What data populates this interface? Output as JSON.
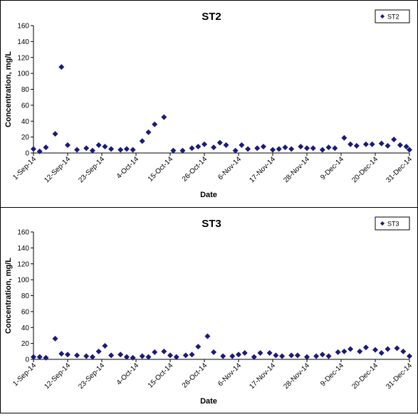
{
  "chart_data": [
    {
      "type": "scatter",
      "title": "ST2",
      "xlabel": "Date",
      "ylabel": "Concentration, mg/L",
      "ylim": [
        0,
        160
      ],
      "yticks": [
        0,
        20,
        40,
        60,
        80,
        100,
        120,
        140,
        160
      ],
      "xlim": [
        "2014-09-01",
        "2014-12-31"
      ],
      "xtick_labels": [
        "1-Sep-14",
        "12-Sep-14",
        "23-Sep-14",
        "4-Oct-14",
        "15-Oct-14",
        "26-Oct-14",
        "6-Nov-14",
        "17-Nov-14",
        "28-Nov-14",
        "9-Dec-14",
        "20-Dec-14",
        "31-Dec-14"
      ],
      "grid": false,
      "legend_position": "top-right",
      "marker_color": "#1a1a7a",
      "series": [
        {
          "name": "ST2",
          "points": [
            [
              "2014-09-01",
              5
            ],
            [
              "2014-09-03",
              2
            ],
            [
              "2014-09-05",
              7
            ],
            [
              "2014-09-08",
              24
            ],
            [
              "2014-09-10",
              108
            ],
            [
              "2014-09-12",
              10
            ],
            [
              "2014-09-15",
              4
            ],
            [
              "2014-09-18",
              6
            ],
            [
              "2014-09-20",
              3
            ],
            [
              "2014-09-22",
              10
            ],
            [
              "2014-09-24",
              8
            ],
            [
              "2014-09-26",
              5
            ],
            [
              "2014-09-29",
              4
            ],
            [
              "2014-10-01",
              5
            ],
            [
              "2014-10-03",
              4
            ],
            [
              "2014-10-06",
              15
            ],
            [
              "2014-10-08",
              26
            ],
            [
              "2014-10-10",
              36
            ],
            [
              "2014-10-13",
              45
            ],
            [
              "2014-10-16",
              3
            ],
            [
              "2014-10-19",
              3
            ],
            [
              "2014-10-22",
              6
            ],
            [
              "2014-10-24",
              8
            ],
            [
              "2014-10-26",
              11
            ],
            [
              "2014-10-29",
              7
            ],
            [
              "2014-10-31",
              13
            ],
            [
              "2014-11-02",
              10
            ],
            [
              "2014-11-05",
              3
            ],
            [
              "2014-11-07",
              10
            ],
            [
              "2014-11-09",
              5
            ],
            [
              "2014-11-12",
              6
            ],
            [
              "2014-11-14",
              8
            ],
            [
              "2014-11-17",
              4
            ],
            [
              "2014-11-19",
              5
            ],
            [
              "2014-11-21",
              7
            ],
            [
              "2014-11-23",
              5
            ],
            [
              "2014-11-26",
              8
            ],
            [
              "2014-11-28",
              6
            ],
            [
              "2014-11-30",
              6
            ],
            [
              "2014-12-03",
              4
            ],
            [
              "2014-12-05",
              7
            ],
            [
              "2014-12-07",
              6
            ],
            [
              "2014-12-10",
              19
            ],
            [
              "2014-12-12",
              11
            ],
            [
              "2014-12-14",
              9
            ],
            [
              "2014-12-17",
              11
            ],
            [
              "2014-12-19",
              11
            ],
            [
              "2014-12-22",
              12
            ],
            [
              "2014-12-24",
              9
            ],
            [
              "2014-12-26",
              17
            ],
            [
              "2014-12-28",
              10
            ],
            [
              "2014-12-30",
              8
            ],
            [
              "2014-12-31",
              4
            ]
          ]
        }
      ]
    },
    {
      "type": "scatter",
      "title": "ST3",
      "xlabel": "Date",
      "ylabel": "Concentration, mg/L",
      "ylim": [
        0,
        160
      ],
      "yticks": [
        0,
        20,
        40,
        60,
        80,
        100,
        120,
        140,
        160
      ],
      "xlim": [
        "2014-09-01",
        "2014-12-31"
      ],
      "xtick_labels": [
        "1-Sep-14",
        "12-Sep-14",
        "23-Sep-14",
        "4-Oct-14",
        "15-Oct-14",
        "26-Oct-14",
        "6-Nov-14",
        "17-Nov-14",
        "28-Nov-14",
        "9-Dec-14",
        "20-Dec-14",
        "31-Dec-14"
      ],
      "grid": false,
      "legend_position": "top-right",
      "marker_color": "#1a1a7a",
      "series": [
        {
          "name": "ST3",
          "points": [
            [
              "2014-09-01",
              3
            ],
            [
              "2014-09-03",
              3
            ],
            [
              "2014-09-05",
              2
            ],
            [
              "2014-09-08",
              26
            ],
            [
              "2014-09-10",
              7
            ],
            [
              "2014-09-12",
              6
            ],
            [
              "2014-09-15",
              5
            ],
            [
              "2014-09-18",
              4
            ],
            [
              "2014-09-20",
              3
            ],
            [
              "2014-09-22",
              10
            ],
            [
              "2014-09-24",
              17
            ],
            [
              "2014-09-26",
              5
            ],
            [
              "2014-09-29",
              6
            ],
            [
              "2014-10-01",
              3
            ],
            [
              "2014-10-03",
              2
            ],
            [
              "2014-10-06",
              4
            ],
            [
              "2014-10-08",
              3
            ],
            [
              "2014-10-10",
              9
            ],
            [
              "2014-10-13",
              10
            ],
            [
              "2014-10-15",
              5
            ],
            [
              "2014-10-17",
              3
            ],
            [
              "2014-10-20",
              5
            ],
            [
              "2014-10-22",
              6
            ],
            [
              "2014-10-24",
              16
            ],
            [
              "2014-10-27",
              29
            ],
            [
              "2014-10-29",
              9
            ],
            [
              "2014-11-01",
              4
            ],
            [
              "2014-11-04",
              4
            ],
            [
              "2014-11-06",
              6
            ],
            [
              "2014-11-08",
              8
            ],
            [
              "2014-11-11",
              3
            ],
            [
              "2014-11-13",
              8
            ],
            [
              "2014-11-16",
              8
            ],
            [
              "2014-11-18",
              5
            ],
            [
              "2014-11-20",
              4
            ],
            [
              "2014-11-23",
              5
            ],
            [
              "2014-11-25",
              5
            ],
            [
              "2014-11-28",
              3
            ],
            [
              "2014-12-01",
              4
            ],
            [
              "2014-12-03",
              6
            ],
            [
              "2014-12-05",
              4
            ],
            [
              "2014-12-08",
              9
            ],
            [
              "2014-12-10",
              10
            ],
            [
              "2014-12-12",
              13
            ],
            [
              "2014-12-15",
              10
            ],
            [
              "2014-12-17",
              15
            ],
            [
              "2014-12-20",
              12
            ],
            [
              "2014-12-22",
              8
            ],
            [
              "2014-12-24",
              13
            ],
            [
              "2014-12-27",
              14
            ],
            [
              "2014-12-29",
              10
            ],
            [
              "2014-12-31",
              4
            ]
          ]
        }
      ]
    }
  ]
}
